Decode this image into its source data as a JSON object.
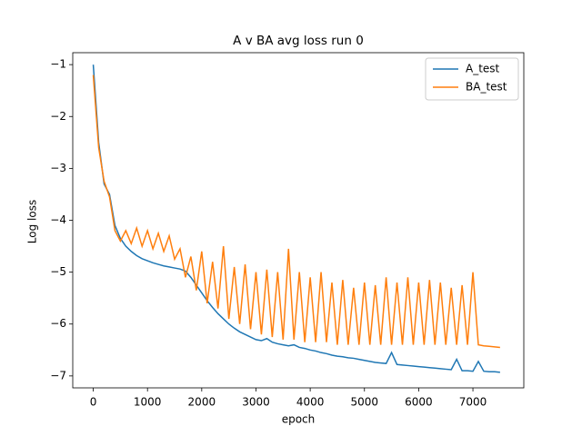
{
  "chart_data": {
    "type": "line",
    "title": "A v BA avg loss run 0",
    "xlabel": "epoch",
    "ylabel": "Log loss",
    "x": [
      0,
      100,
      200,
      300,
      400,
      500,
      600,
      700,
      800,
      900,
      1000,
      1100,
      1200,
      1300,
      1400,
      1500,
      1600,
      1700,
      1800,
      1900,
      2000,
      2100,
      2200,
      2300,
      2400,
      2500,
      2600,
      2700,
      2800,
      2900,
      3000,
      3100,
      3200,
      3300,
      3400,
      3500,
      3600,
      3700,
      3800,
      3900,
      4000,
      4100,
      4200,
      4300,
      4400,
      4500,
      4600,
      4700,
      4800,
      4900,
      5000,
      5100,
      5200,
      5300,
      5400,
      5500,
      5600,
      5700,
      5800,
      5900,
      6000,
      6100,
      6200,
      6300,
      6400,
      6500,
      6600,
      6700,
      6800,
      6900,
      7000,
      7100,
      7200,
      7300,
      7400,
      7500
    ],
    "series": [
      {
        "name": "A_test",
        "color": "#1f77b4",
        "values": [
          -1.0,
          -2.5,
          -3.3,
          -3.5,
          -4.1,
          -4.35,
          -4.5,
          -4.6,
          -4.68,
          -4.74,
          -4.78,
          -4.82,
          -4.85,
          -4.88,
          -4.9,
          -4.92,
          -4.94,
          -4.98,
          -5.1,
          -5.25,
          -5.4,
          -5.55,
          -5.68,
          -5.8,
          -5.9,
          -6.0,
          -6.08,
          -6.15,
          -6.2,
          -6.25,
          -6.3,
          -6.32,
          -6.28,
          -6.35,
          -6.38,
          -6.4,
          -6.42,
          -6.4,
          -6.45,
          -6.47,
          -6.5,
          -6.52,
          -6.55,
          -6.57,
          -6.6,
          -6.62,
          -6.63,
          -6.65,
          -6.66,
          -6.68,
          -6.7,
          -6.72,
          -6.74,
          -6.75,
          -6.76,
          -6.55,
          -6.78,
          -6.79,
          -6.8,
          -6.81,
          -6.82,
          -6.83,
          -6.84,
          -6.85,
          -6.86,
          -6.87,
          -6.88,
          -6.68,
          -6.9,
          -6.9,
          -6.91,
          -6.72,
          -6.91,
          -6.92,
          -6.92,
          -6.93
        ]
      },
      {
        "name": "BA_test",
        "color": "#ff7f0e",
        "values": [
          -1.2,
          -2.6,
          -3.25,
          -3.55,
          -4.2,
          -4.4,
          -4.2,
          -4.45,
          -4.15,
          -4.5,
          -4.2,
          -4.55,
          -4.25,
          -4.6,
          -4.3,
          -4.75,
          -4.55,
          -5.1,
          -4.7,
          -5.35,
          -4.6,
          -5.6,
          -4.8,
          -5.7,
          -4.5,
          -5.9,
          -4.9,
          -6.0,
          -4.85,
          -6.1,
          -5.0,
          -6.2,
          -4.95,
          -6.25,
          -5.0,
          -6.3,
          -4.55,
          -6.3,
          -5.0,
          -6.35,
          -5.1,
          -6.35,
          -5.0,
          -6.35,
          -5.2,
          -6.4,
          -5.15,
          -6.4,
          -5.3,
          -6.4,
          -5.2,
          -6.4,
          -5.25,
          -6.4,
          -5.1,
          -6.4,
          -5.2,
          -6.4,
          -5.1,
          -6.4,
          -5.2,
          -6.4,
          -5.15,
          -6.4,
          -5.2,
          -6.4,
          -5.3,
          -6.4,
          -5.25,
          -6.4,
          -5.0,
          -6.4,
          -6.42,
          -6.43,
          -6.44,
          -6.45
        ]
      }
    ],
    "xlim": [
      -378,
      7938
    ],
    "ylim": [
      -7.23,
      -0.77
    ],
    "xticks": [
      0,
      1000,
      2000,
      3000,
      4000,
      5000,
      6000,
      7000
    ],
    "yticks": [
      {
        "value": -1,
        "label": "−1"
      },
      {
        "value": -2,
        "label": "−2"
      },
      {
        "value": -3,
        "label": "−3"
      },
      {
        "value": -4,
        "label": "−4"
      },
      {
        "value": -5,
        "label": "−5"
      },
      {
        "value": -6,
        "label": "−6"
      },
      {
        "value": -7,
        "label": "−7"
      }
    ],
    "grid": false,
    "legend": "upper right"
  }
}
